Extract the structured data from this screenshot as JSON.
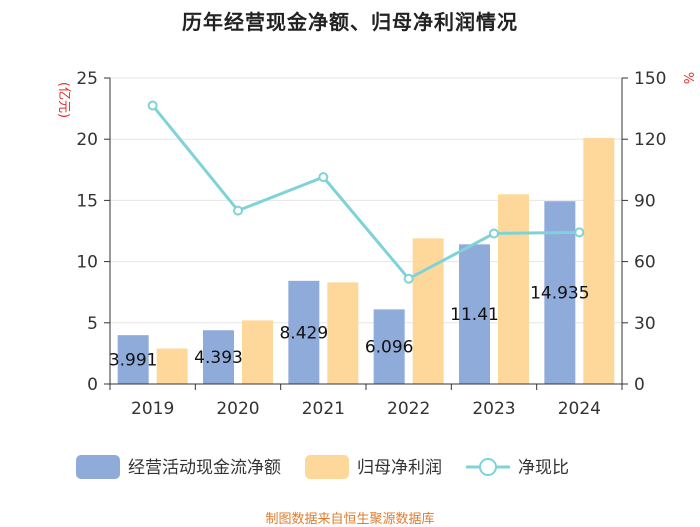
{
  "chart_data": {
    "type": "bar+line",
    "title": "历年经营现金净额、归母净利润情况",
    "categories": [
      "2019",
      "2020",
      "2021",
      "2022",
      "2023",
      "2024"
    ],
    "series": [
      {
        "name": "经营活动现金流净额",
        "type": "bar",
        "axis": "left",
        "color": "#8eabd9",
        "values": [
          3.991,
          4.393,
          8.429,
          6.096,
          11.41,
          14.935
        ],
        "labels": [
          "3.991",
          "4.393",
          "8.429",
          "6.096",
          "11.41",
          "14.935"
        ]
      },
      {
        "name": "归母净利润",
        "type": "bar",
        "axis": "left",
        "color": "#fdd89a",
        "values": [
          2.9,
          5.2,
          8.3,
          11.9,
          15.5,
          20.1
        ]
      },
      {
        "name": "净现比",
        "type": "line",
        "axis": "right",
        "color": "#7fd3d8",
        "values": [
          136.5,
          85.0,
          101.4,
          51.6,
          73.8,
          74.3
        ]
      }
    ],
    "y_left": {
      "label": "(亿元)",
      "min": 0,
      "max": 25,
      "ticks": [
        0,
        5,
        10,
        15,
        20,
        25
      ]
    },
    "y_right": {
      "label": "%",
      "min": 0,
      "max": 150,
      "ticks": [
        0,
        30,
        60,
        90,
        120,
        150
      ]
    },
    "legend_position": "bottom"
  },
  "source": "制图数据来自恒生聚源数据库",
  "colors": {
    "unit_label": "#e0312f",
    "source": "#e07b2f",
    "axis": "#333333",
    "grid": "#e6e6e6"
  }
}
